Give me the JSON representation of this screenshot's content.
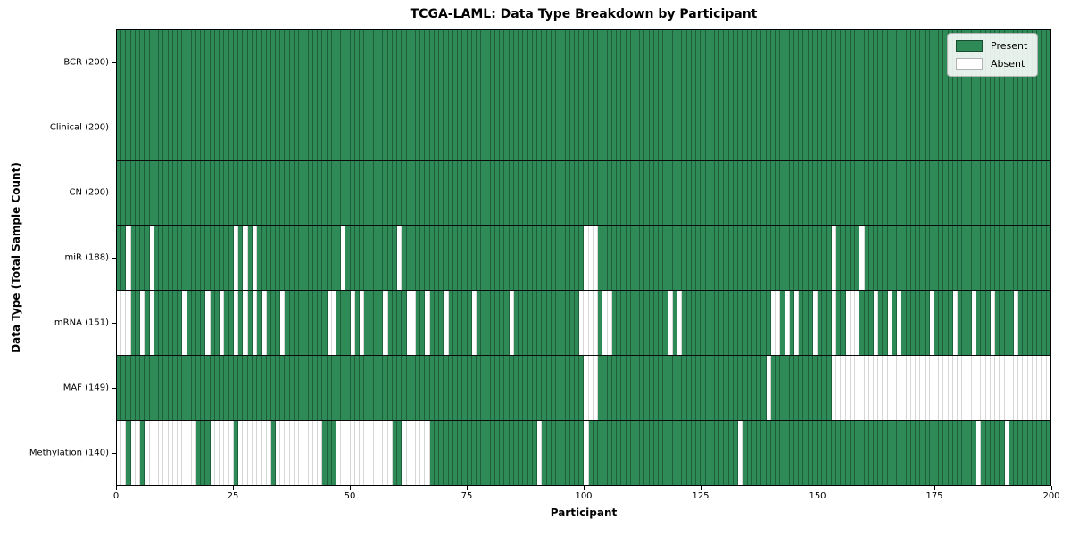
{
  "title": "TCGA-LAML: Data Type Breakdown by Participant",
  "axes": {
    "xlabel": "Participant",
    "ylabel": "Data Type (Total Sample Count)",
    "x_ticks": [
      0,
      25,
      50,
      75,
      100,
      125,
      150,
      175,
      200
    ],
    "x_range": [
      0,
      200
    ]
  },
  "legend": {
    "present_label": "Present",
    "absent_label": "Absent"
  },
  "colors": {
    "present": "#2e8b57",
    "absent": "#ffffff"
  },
  "chart_data": {
    "type": "heatmap",
    "n_participants": 200,
    "value_semantics": "green = data type present for participant, white = absent",
    "rows": [
      {
        "name": "bcr",
        "label": "BCR (200)",
        "data_type": "BCR",
        "total": 200,
        "absent": []
      },
      {
        "name": "clinical",
        "label": "Clinical (200)",
        "data_type": "Clinical",
        "total": 200,
        "absent": []
      },
      {
        "name": "cn",
        "label": "CN (200)",
        "data_type": "CN",
        "total": 200,
        "absent": []
      },
      {
        "name": "mir",
        "label": "miR (188)",
        "data_type": "miR",
        "total": 188,
        "absent": [
          2,
          7,
          25,
          27,
          29,
          48,
          60,
          100,
          101,
          102,
          153,
          159
        ]
      },
      {
        "name": "mrna",
        "label": "mRNA (151)",
        "data_type": "mRNA",
        "total": 151,
        "absent": [
          0,
          1,
          2,
          5,
          7,
          14,
          19,
          22,
          25,
          27,
          29,
          31,
          35,
          45,
          46,
          50,
          52,
          57,
          62,
          63,
          66,
          70,
          76,
          84,
          99,
          100,
          101,
          102,
          104,
          105,
          118,
          120,
          140,
          141,
          143,
          145,
          149,
          153,
          156,
          157,
          158,
          162,
          165,
          167,
          174,
          179,
          183,
          187,
          192
        ]
      },
      {
        "name": "maf",
        "label": "MAF (149)",
        "data_type": "MAF",
        "total": 149,
        "absent": [
          100,
          101,
          102,
          139,
          153,
          154,
          155,
          156,
          157,
          158,
          159,
          160,
          161,
          162,
          163,
          164,
          165,
          166,
          167,
          168,
          169,
          170,
          171,
          172,
          173,
          174,
          175,
          176,
          177,
          178,
          179,
          180,
          181,
          182,
          183,
          184,
          185,
          186,
          187,
          188,
          189,
          190,
          191,
          192,
          193,
          194,
          195,
          196,
          197,
          198,
          199
        ]
      },
      {
        "name": "methylation",
        "label": "Methylation (140)",
        "data_type": "Methylation",
        "total": 140,
        "absent": [
          0,
          1,
          3,
          4,
          6,
          7,
          8,
          9,
          10,
          11,
          12,
          13,
          14,
          15,
          16,
          20,
          21,
          22,
          23,
          24,
          26,
          27,
          28,
          29,
          30,
          31,
          32,
          34,
          35,
          36,
          37,
          38,
          39,
          40,
          41,
          42,
          43,
          47,
          48,
          49,
          50,
          51,
          52,
          53,
          54,
          55,
          56,
          57,
          58,
          61,
          62,
          63,
          64,
          65,
          66,
          90,
          100,
          133,
          184,
          190
        ]
      }
    ]
  }
}
